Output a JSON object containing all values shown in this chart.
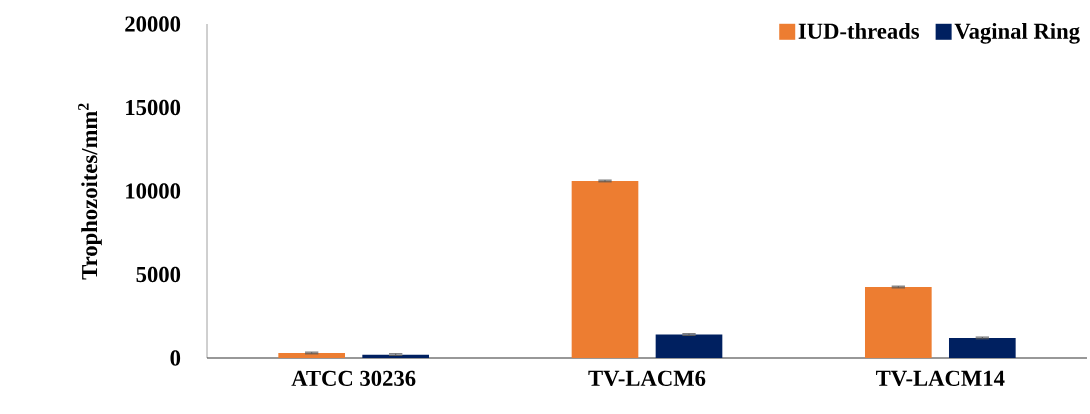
{
  "chart_data": {
    "type": "bar",
    "ylabel": "Trophozoites/mm$^{2}$",
    "categories": [
      "ATCC 30236",
      "TV-LACM6",
      "TV-LACM14"
    ],
    "series": [
      {
        "name": "IUD-threads",
        "color": "#ed7d31",
        "values": [
          300,
          10600,
          4250
        ],
        "errors": [
          50,
          50,
          50
        ]
      },
      {
        "name": "Vaginal Ring",
        "color": "#002060",
        "values": [
          200,
          1400,
          1200
        ],
        "errors": [
          50,
          50,
          50
        ]
      }
    ],
    "ylim": [
      0,
      20000
    ],
    "yticks": [
      0,
      5000,
      10000,
      15000,
      20000
    ],
    "legend": "top right"
  }
}
